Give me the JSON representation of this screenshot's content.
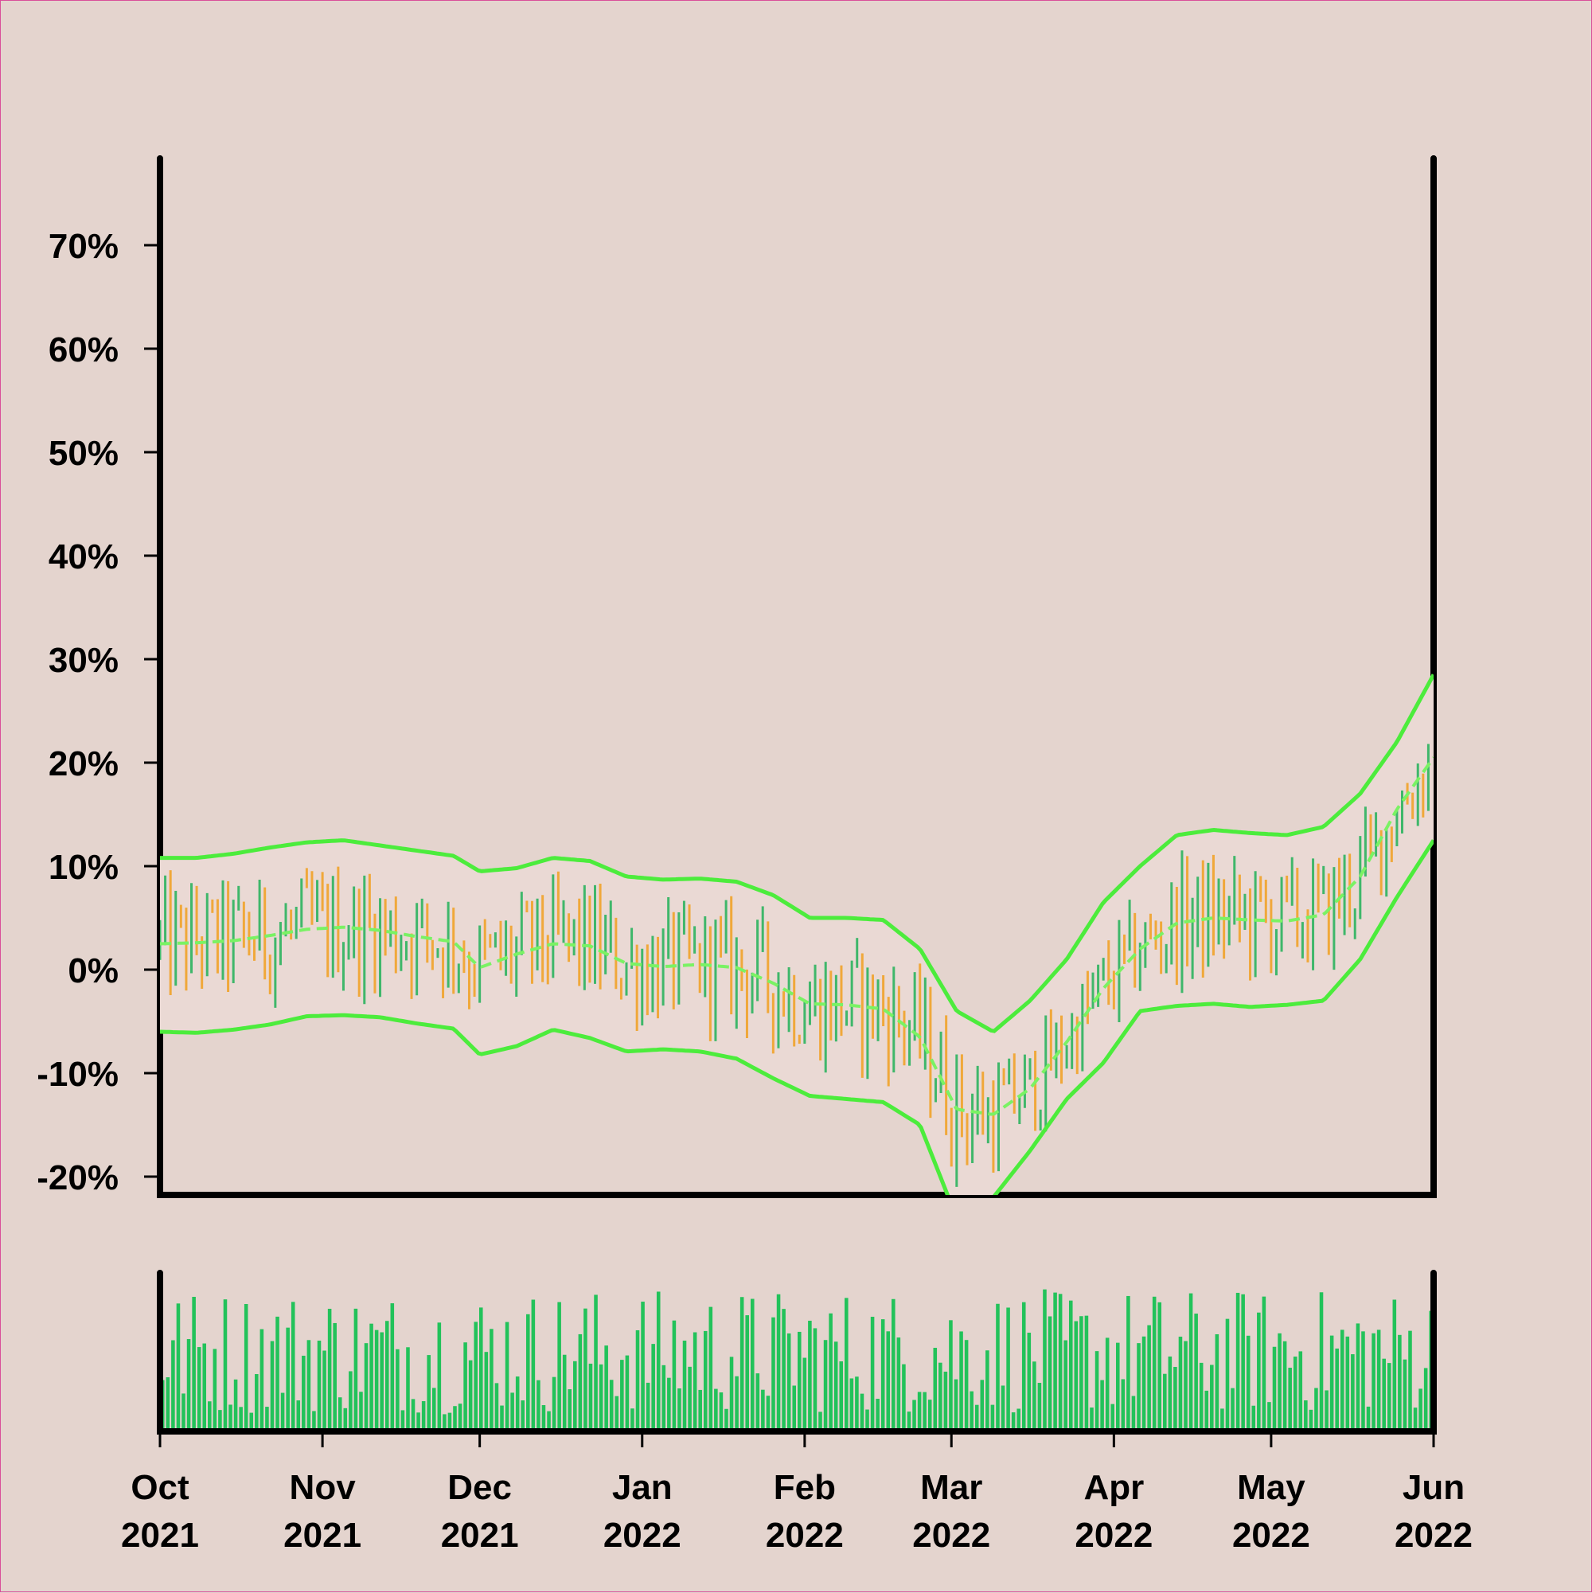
{
  "colors": {
    "background": "#e4d4ce",
    "band_fill": "#ead9d4",
    "band_line": "#4cec3c",
    "mid_line": "#7af264",
    "up_bar": "#3fb76a",
    "down_bar": "#f0a83a",
    "volume_bar": "#22c25a",
    "axis": "#000000"
  },
  "chart_data": [
    {
      "type": "ohlc",
      "title": "",
      "xlabel": "",
      "ylabel": "",
      "x_range": [
        "2021-10-01",
        "2022-06-01"
      ],
      "ylim": [
        -21,
        78
      ],
      "y_ticks": [
        -20,
        -10,
        0,
        10,
        20,
        30,
        40,
        50,
        60,
        70
      ],
      "y_tick_labels": [
        "-20%",
        "-10%",
        "0%",
        "10%",
        "20%",
        "30%",
        "40%",
        "50%",
        "60%",
        "70%"
      ],
      "x_ticks": [
        "2021-10-01",
        "2021-11-01",
        "2021-12-01",
        "2022-01-01",
        "2022-02-01",
        "2022-03-01",
        "2022-04-01",
        "2022-05-01",
        "2022-06-01"
      ],
      "x_tick_labels": [
        [
          "Oct",
          "2021"
        ],
        [
          "Nov",
          "2021"
        ],
        [
          "Dec",
          "2021"
        ],
        [
          "Jan",
          "2022"
        ],
        [
          "Feb",
          "2022"
        ],
        [
          "Mar",
          "2022"
        ],
        [
          "Apr",
          "2022"
        ],
        [
          "May",
          "2022"
        ],
        [
          "Jun",
          "2022"
        ]
      ],
      "grid": false,
      "band_series": {
        "dates": [
          "2021-10-01",
          "2021-10-08",
          "2021-10-15",
          "2021-10-22",
          "2021-10-29",
          "2021-11-05",
          "2021-11-12",
          "2021-11-19",
          "2021-11-26",
          "2021-12-01",
          "2021-12-08",
          "2021-12-15",
          "2021-12-22",
          "2021-12-29",
          "2022-01-05",
          "2022-01-12",
          "2022-01-19",
          "2022-01-26",
          "2022-02-02",
          "2022-02-09",
          "2022-02-16",
          "2022-02-23",
          "2022-03-02",
          "2022-03-09",
          "2022-03-16",
          "2022-03-23",
          "2022-03-30",
          "2022-04-06",
          "2022-04-13",
          "2022-04-20",
          "2022-04-27",
          "2022-05-04",
          "2022-05-11",
          "2022-05-18",
          "2022-05-25",
          "2022-06-01"
        ],
        "upper": [
          10.8,
          10.8,
          11.2,
          11.8,
          12.3,
          12.5,
          12.0,
          11.5,
          11.0,
          9.5,
          9.8,
          10.8,
          10.5,
          9.0,
          8.7,
          8.8,
          8.5,
          7.2,
          5.0,
          5.0,
          4.8,
          2.0,
          -4.0,
          -6.0,
          -3.0,
          1.0,
          6.5,
          10.0,
          13.0,
          13.5,
          13.2,
          13.0,
          13.8,
          17.0,
          22.0,
          28.5
        ],
        "middle": [
          2.5,
          2.6,
          2.8,
          3.3,
          3.9,
          4.1,
          3.8,
          3.2,
          2.7,
          0.2,
          1.5,
          2.5,
          2.3,
          0.6,
          0.3,
          0.5,
          0.2,
          -1.3,
          -3.3,
          -3.4,
          -3.8,
          -6.5,
          -13.5,
          -14.0,
          -11.5,
          -7.0,
          -1.8,
          2.0,
          4.5,
          5.0,
          4.8,
          4.7,
          5.3,
          9.0,
          15.5,
          20.5
        ],
        "lower": [
          -6.0,
          -6.1,
          -5.8,
          -5.3,
          -4.5,
          -4.4,
          -4.6,
          -5.2,
          -5.7,
          -8.2,
          -7.4,
          -5.8,
          -6.6,
          -7.9,
          -7.7,
          -7.9,
          -8.6,
          -10.5,
          -12.2,
          -12.5,
          -12.8,
          -15.0,
          -24.0,
          -22.0,
          -17.5,
          -12.5,
          -9.0,
          -4.0,
          -3.5,
          -3.3,
          -3.6,
          -3.4,
          -3.0,
          1.0,
          7.0,
          12.5
        ]
      },
      "price_summary": {
        "start": 2.0,
        "low": -19.0,
        "low_date": "2022-02-28",
        "end": 20.5
      }
    },
    {
      "type": "bar",
      "title": "",
      "xlabel": "",
      "ylabel": "",
      "x_range": [
        "2021-10-01",
        "2022-06-01"
      ],
      "note_values": "relative daily volume, 0-1",
      "values_count": 244
    }
  ]
}
